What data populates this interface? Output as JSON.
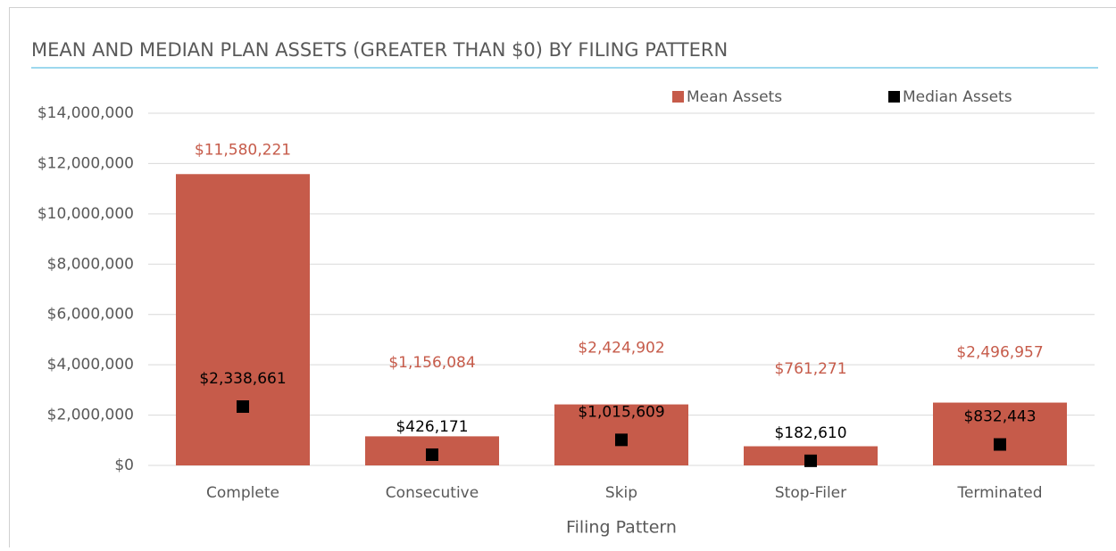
{
  "chart_data": {
    "type": "bar",
    "title": "MEAN AND MEDIAN PLAN ASSETS (GREATER THAN $0) BY FILING PATTERN",
    "x_label": "Filing Pattern",
    "categories": [
      "Complete",
      "Consecutive",
      "Skip",
      "Stop-Filer",
      "Terminated"
    ],
    "series": [
      {
        "name": "Mean Assets",
        "type": "bar",
        "color": "#c65b4a",
        "values": [
          11580221,
          1156084,
          2424902,
          761271,
          2496957
        ],
        "value_labels": [
          "$11,580,221",
          "$1,156,084",
          "$2,424,902",
          "$761,271",
          "$2,496,957"
        ]
      },
      {
        "name": "Median Assets",
        "type": "scatter",
        "marker": "square",
        "color": "#000000",
        "values": [
          2338661,
          426171,
          1015609,
          182610,
          832443
        ],
        "value_labels": [
          "$2,338,661",
          "$426,171",
          "$1,015,609",
          "$182,610",
          "$832,443"
        ]
      }
    ],
    "ylim": [
      0,
      14000000
    ],
    "yticks": [
      {
        "value": 0,
        "label": "$0"
      },
      {
        "value": 2000000,
        "label": "$2,000,000"
      },
      {
        "value": 4000000,
        "label": "$4,000,000"
      },
      {
        "value": 6000000,
        "label": "$6,000,000"
      },
      {
        "value": 8000000,
        "label": "$8,000,000"
      },
      {
        "value": 10000000,
        "label": "$10,000,000"
      },
      {
        "value": 12000000,
        "label": "$12,000,000"
      },
      {
        "value": 14000000,
        "label": "$14,000,000"
      }
    ],
    "grid": true,
    "legend": "top-right"
  }
}
